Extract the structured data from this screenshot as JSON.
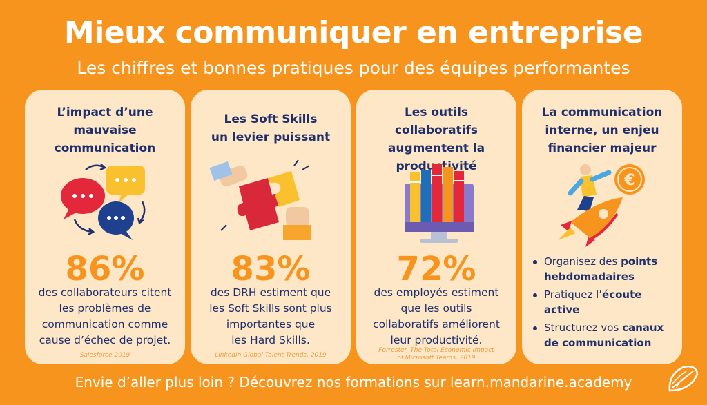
{
  "header": {
    "title": "Mieux communiquer en entreprise",
    "subtitle": "Les chiffres et bonnes pratiques pour des équipes performantes"
  },
  "cards": [
    {
      "title_lines": [
        "L’impact d’une",
        "mauvaise",
        "communication"
      ],
      "stat": "86%",
      "desc_lines": [
        "des collaborateurs citent",
        "les problèmes de",
        "communication comme",
        "cause d’échec de projet."
      ],
      "source_lines": [
        "Salesforce 2019"
      ]
    },
    {
      "title_lines": [
        "Les Soft Skills",
        "un levier puissant"
      ],
      "stat": "83%",
      "desc_lines": [
        "des DRH estiment que",
        "les Soft Skills sont plus",
        "importantes que",
        "les Hard Skills."
      ],
      "source_lines": [
        "LinkedIn Global Talent Trends, 2019"
      ]
    },
    {
      "title_lines": [
        "Les outils collaboratifs",
        "augmentent la",
        "productivité"
      ],
      "stat": "72%",
      "desc_lines": [
        "des employés estiment",
        "que les outils",
        "collaboratifs améliorent",
        "leur productivité."
      ],
      "source_lines": [
        "Forrester, The Total Economic Impact",
        "of Microsoft Teams, 2019"
      ]
    },
    {
      "title_lines": [
        "La communication",
        "interne, un enjeu",
        "financier majeur"
      ],
      "bullets": [
        {
          "text": "Organisez des ",
          "bold": "points hebdomadaires"
        },
        {
          "text": "Pratiquez l’",
          "bold": "écoute active"
        },
        {
          "text": "Structurez vos ",
          "bold": "canaux de communication"
        }
      ]
    }
  ],
  "footer": {
    "text": "Envie d’aller plus loin ? Découvrez nos formations sur learn.mandarine.academy"
  },
  "colors": {
    "background": "#f7941d",
    "card": "#fde7c7",
    "navy": "#1f2f6b",
    "orange": "#f7941d"
  }
}
